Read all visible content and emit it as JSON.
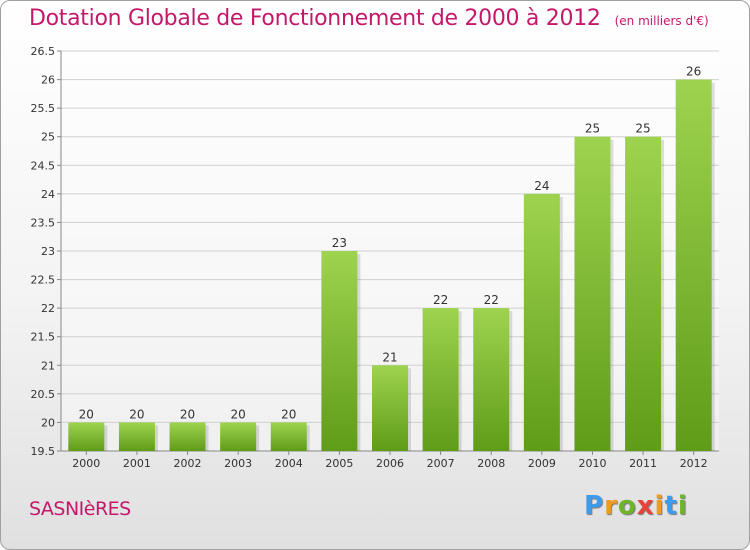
{
  "title": "Dotation Globale de Fonctionnement de 2000 à 2012",
  "unit": "(en milliers d'€)",
  "town": "SASNIèRES",
  "logo": {
    "letters": [
      "P",
      "r",
      "o",
      "x",
      "i",
      "t",
      "i"
    ],
    "colors": [
      "#3d9be9",
      "#f39a1e",
      "#6fb52c",
      "#e8423a",
      "#f39a1e",
      "#3d9be9",
      "#6fb52c"
    ]
  },
  "chart_data": {
    "type": "bar",
    "title": "Dotation Globale de Fonctionnement de 2000 à 2012",
    "ylabel": "",
    "xlabel": "",
    "categories": [
      "2000",
      "2001",
      "2002",
      "2003",
      "2004",
      "2005",
      "2006",
      "2007",
      "2008",
      "2009",
      "2010",
      "2011",
      "2012"
    ],
    "values": [
      20,
      20,
      20,
      20,
      20,
      23,
      21,
      22,
      22,
      24,
      25,
      25,
      26
    ],
    "labels": [
      "20",
      "20",
      "20",
      "20",
      "20",
      "23",
      "21",
      "22",
      "22",
      "24",
      "25",
      "25",
      "26"
    ],
    "ylim": [
      19.5,
      26.5
    ],
    "yticks": [
      19.5,
      20,
      20.5,
      21,
      21.5,
      22,
      22.5,
      23,
      23.5,
      24,
      24.5,
      25,
      25.5,
      26,
      26.5
    ],
    "grid": true,
    "bar_color": "#7cc13a"
  }
}
